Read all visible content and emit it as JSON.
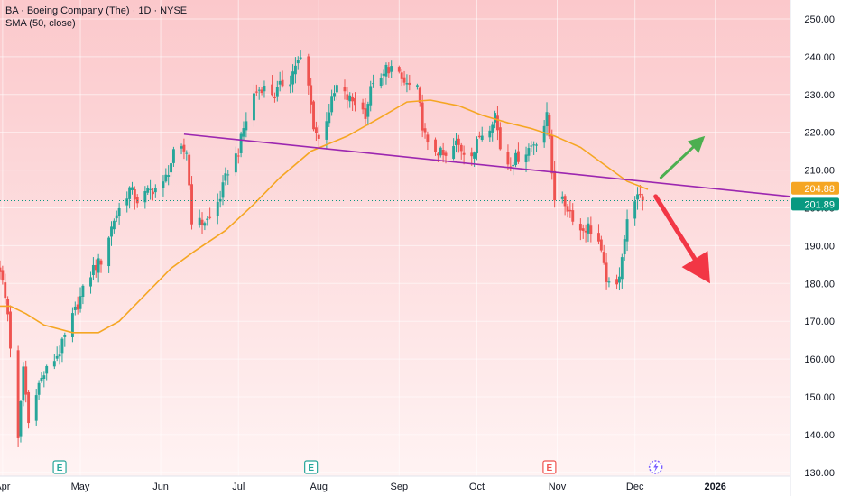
{
  "header": {
    "title": "BA · Boeing Company (The) · 1D · NYSE",
    "indicator": "SMA (50, close)"
  },
  "colors": {
    "bg_top": "#fbc8cb",
    "bg_bottom": "#fff3f3",
    "up": "#26a69a",
    "down": "#ef5350",
    "sma": "#f5a623",
    "trendline": "#9c27b0",
    "arrow_up": "#4caf50",
    "arrow_down": "#f23645",
    "price_badge": "#089981",
    "sma_badge": "#f5a623",
    "earnings_past": "#26a69a",
    "earnings_future": "#ef5350"
  },
  "chart_data": {
    "type": "candlestick",
    "x_range": [
      "2025-03-31",
      "2026-01-30"
    ],
    "ylim": [
      129,
      255
    ],
    "y_ticks": [
      "130.00",
      "140.00",
      "150.00",
      "160.00",
      "170.00",
      "180.00",
      "190.00",
      "200.00",
      "210.00",
      "220.00",
      "230.00",
      "240.00",
      "250.00"
    ],
    "x_ticks": [
      {
        "label": "Apr",
        "date": "2025-04-01"
      },
      {
        "label": "May",
        "date": "2025-05-01"
      },
      {
        "label": "Jun",
        "date": "2025-06-01"
      },
      {
        "label": "Jul",
        "date": "2025-07-01"
      },
      {
        "label": "Aug",
        "date": "2025-08-01"
      },
      {
        "label": "Sep",
        "date": "2025-09-01"
      },
      {
        "label": "Oct",
        "date": "2025-10-01"
      },
      {
        "label": "Nov",
        "date": "2025-11-01"
      },
      {
        "label": "Dec",
        "date": "2025-12-01"
      },
      {
        "label": "2026",
        "date": "2026-01-01"
      }
    ],
    "last_price": {
      "value": 201.89,
      "label": "201.89"
    },
    "sma_last": {
      "value": 204.88,
      "label": "204.88"
    },
    "anchors": [
      [
        "2025-03-31",
        184
      ],
      [
        "2025-04-03",
        172
      ],
      [
        "2025-04-07",
        138
      ],
      [
        "2025-04-09",
        158
      ],
      [
        "2025-04-11",
        143
      ],
      [
        "2025-04-14",
        152
      ],
      [
        "2025-04-17",
        156
      ],
      [
        "2025-04-23",
        162
      ],
      [
        "2025-04-28",
        171
      ],
      [
        "2025-05-02",
        178
      ],
      [
        "2025-05-06",
        184
      ],
      [
        "2025-05-09",
        186
      ],
      [
        "2025-05-14",
        197
      ],
      [
        "2025-05-20",
        205
      ],
      [
        "2025-05-23",
        202
      ],
      [
        "2025-05-29",
        205
      ],
      [
        "2025-06-02",
        206
      ],
      [
        "2025-06-06",
        214
      ],
      [
        "2025-06-09",
        215
      ],
      [
        "2025-06-11",
        215
      ],
      [
        "2025-06-13",
        197
      ],
      [
        "2025-06-16",
        196
      ],
      [
        "2025-06-20",
        197
      ],
      [
        "2025-06-24",
        203
      ],
      [
        "2025-06-27",
        210
      ],
      [
        "2025-07-01",
        215
      ],
      [
        "2025-07-03",
        221
      ],
      [
        "2025-07-07",
        230
      ],
      [
        "2025-07-10",
        232
      ],
      [
        "2025-07-15",
        230
      ],
      [
        "2025-07-18",
        233
      ],
      [
        "2025-07-21",
        234
      ],
      [
        "2025-07-23",
        238
      ],
      [
        "2025-07-25",
        239
      ],
      [
        "2025-07-28",
        232
      ],
      [
        "2025-07-30",
        222
      ],
      [
        "2025-08-01",
        218
      ],
      [
        "2025-08-04",
        224
      ],
      [
        "2025-08-08",
        232
      ],
      [
        "2025-08-12",
        229
      ],
      [
        "2025-08-15",
        228
      ],
      [
        "2025-08-19",
        225
      ],
      [
        "2025-08-22",
        234
      ],
      [
        "2025-08-25",
        233
      ],
      [
        "2025-08-27",
        237
      ],
      [
        "2025-08-29",
        237
      ],
      [
        "2025-09-03",
        233
      ],
      [
        "2025-09-08",
        231
      ],
      [
        "2025-09-10",
        222
      ],
      [
        "2025-09-12",
        216
      ],
      [
        "2025-09-16",
        215
      ],
      [
        "2025-09-19",
        213
      ],
      [
        "2025-09-23",
        217
      ],
      [
        "2025-09-26",
        215
      ],
      [
        "2025-09-30",
        215
      ],
      [
        "2025-10-02",
        219
      ],
      [
        "2025-10-06",
        222
      ],
      [
        "2025-10-08",
        225
      ],
      [
        "2025-10-10",
        216
      ],
      [
        "2025-10-13",
        212
      ],
      [
        "2025-10-16",
        213
      ],
      [
        "2025-10-20",
        215
      ],
      [
        "2025-10-24",
        218
      ],
      [
        "2025-10-27",
        222
      ],
      [
        "2025-10-28",
        224
      ],
      [
        "2025-10-29",
        219
      ],
      [
        "2025-10-30",
        210
      ],
      [
        "2025-10-31",
        203
      ],
      [
        "2025-11-04",
        201
      ],
      [
        "2025-11-06",
        199
      ],
      [
        "2025-11-10",
        194
      ],
      [
        "2025-11-13",
        195
      ],
      [
        "2025-11-17",
        191
      ],
      [
        "2025-11-19",
        184
      ],
      [
        "2025-11-21",
        179
      ],
      [
        "2025-11-24",
        179
      ],
      [
        "2025-11-25",
        183
      ],
      [
        "2025-11-26",
        188
      ],
      [
        "2025-11-28",
        196
      ],
      [
        "2025-12-01",
        203
      ],
      [
        "2025-12-03",
        202
      ],
      [
        "2025-12-04",
        201.89
      ]
    ],
    "sma": [
      [
        "2025-03-31",
        174
      ],
      [
        "2025-04-04",
        174
      ],
      [
        "2025-04-10",
        172
      ],
      [
        "2025-04-17",
        169
      ],
      [
        "2025-04-28",
        167
      ],
      [
        "2025-05-08",
        167
      ],
      [
        "2025-05-16",
        170
      ],
      [
        "2025-05-26",
        177
      ],
      [
        "2025-06-05",
        184
      ],
      [
        "2025-06-14",
        188.5
      ],
      [
        "2025-06-26",
        194
      ],
      [
        "2025-07-07",
        201
      ],
      [
        "2025-07-17",
        208
      ],
      [
        "2025-07-29",
        215
      ],
      [
        "2025-08-12",
        219
      ],
      [
        "2025-08-25",
        224
      ],
      [
        "2025-09-04",
        228
      ],
      [
        "2025-09-13",
        228.5
      ],
      [
        "2025-09-24",
        227
      ],
      [
        "2025-10-03",
        224.5
      ],
      [
        "2025-10-13",
        222.5
      ],
      [
        "2025-10-22",
        221
      ],
      [
        "2025-10-31",
        219
      ],
      [
        "2025-11-10",
        216
      ],
      [
        "2025-11-20",
        211
      ],
      [
        "2025-11-28",
        207
      ],
      [
        "2025-12-06",
        204.88
      ]
    ],
    "trendline": {
      "from": [
        "2025-06-10",
        219.5
      ],
      "to": [
        "2026-01-30",
        203
      ]
    },
    "earnings": [
      {
        "date": "2025-04-23",
        "label": "E",
        "kind": "past"
      },
      {
        "date": "2025-07-29",
        "label": "E",
        "kind": "past"
      },
      {
        "date": "2025-10-29",
        "label": "E",
        "kind": "future"
      }
    ],
    "event_icon": {
      "date": "2025-12-09",
      "name": "lightning-icon"
    },
    "arrows": [
      {
        "name": "up-arrow",
        "from": [
          "2025-12-11",
          208
        ],
        "to": [
          "2025-12-28",
          219
        ]
      },
      {
        "name": "down-arrow",
        "from": [
          "2025-12-09",
          203
        ],
        "to": [
          "2025-12-30",
          180
        ]
      }
    ]
  }
}
